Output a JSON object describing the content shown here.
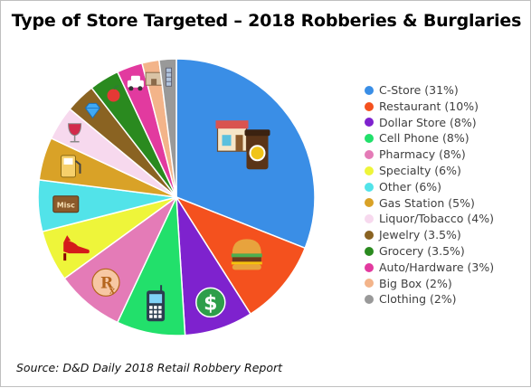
{
  "title": "Type of Store Targeted – 2018 Robberies & Burglaries",
  "source": "Source: D&D Daily 2018 Retail Robbery Report",
  "chart_data": {
    "type": "pie",
    "title": "Type of Store Targeted – 2018 Robberies & Burglaries",
    "start_angle": "12 o'clock, clockwise",
    "legend_position": "right",
    "slices": [
      {
        "label": "C-Store",
        "value": 31,
        "legend": "C-Store (31%)",
        "color": "#3a8ee6",
        "icon": "store-coffee-icon"
      },
      {
        "label": "Restaurant",
        "value": 10,
        "legend": "Restaurant (10%)",
        "color": "#f4511e",
        "icon": "burger-icon"
      },
      {
        "label": "Dollar Store",
        "value": 8,
        "legend": "Dollar Store (8%)",
        "color": "#7e22ce",
        "icon": "dollar-icon"
      },
      {
        "label": "Cell Phone",
        "value": 8,
        "legend": "Cell Phone (8%)",
        "color": "#22e06b",
        "icon": "cell-phone-icon"
      },
      {
        "label": "Pharmacy",
        "value": 8,
        "legend": "Pharmacy (8%)",
        "color": "#e47bb7",
        "icon": "rx-icon"
      },
      {
        "label": "Specialty",
        "value": 6,
        "legend": "Specialty (6%)",
        "color": "#eef53a",
        "icon": "high-heel-icon"
      },
      {
        "label": "Other",
        "value": 6,
        "legend": "Other (6%)",
        "color": "#52e3e9",
        "icon": "misc-box-icon"
      },
      {
        "label": "Gas Station",
        "value": 5,
        "legend": "Gas Station (5%)",
        "color": "#d9a227",
        "icon": "gas-pump-icon"
      },
      {
        "label": "Liquor/Tobacco",
        "value": 4,
        "legend": "Liquor/Tobacco (4%)",
        "color": "#f7d9ee",
        "icon": "wine-glass-icon"
      },
      {
        "label": "Jewelry",
        "value": 3.5,
        "legend": "Jewelry (3.5%)",
        "color": "#8a6322",
        "icon": "diamond-icon"
      },
      {
        "label": "Grocery",
        "value": 3.5,
        "legend": "Grocery (3.5%)",
        "color": "#2a8a1f",
        "icon": "apple-icon"
      },
      {
        "label": "Auto/Hardware",
        "value": 3,
        "legend": "Auto/Hardware (3%)",
        "color": "#e23a9f",
        "icon": "car-icon"
      },
      {
        "label": "Big Box",
        "value": 2,
        "legend": "Big Box (2%)",
        "color": "#f3b48a",
        "icon": "big-box-store-icon"
      },
      {
        "label": "Clothing",
        "value": 2,
        "legend": "Clothing (2%)",
        "color": "#999999",
        "icon": "clothing-icon"
      }
    ]
  }
}
